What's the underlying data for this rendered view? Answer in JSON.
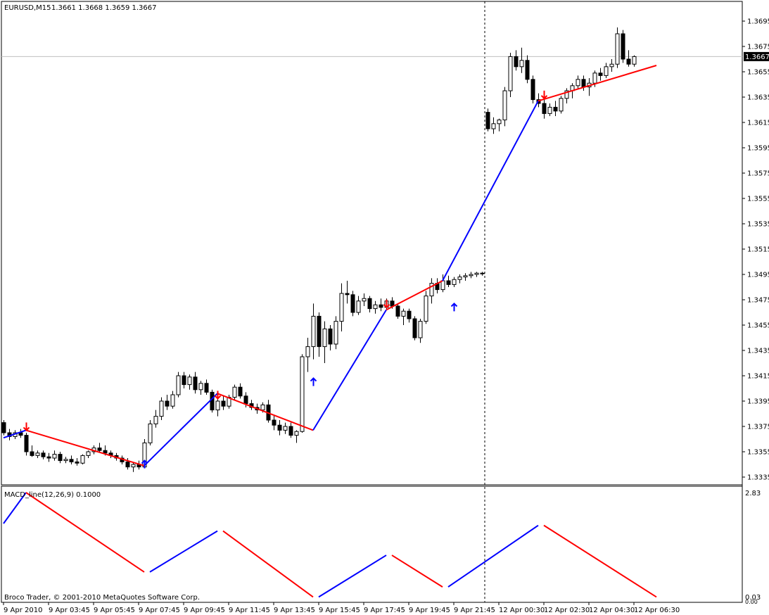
{
  "header": {
    "symbol": "EURUSD,M15",
    "ohlc": "1.3661 1.3668 1.3659 1.3667"
  },
  "indicator": {
    "title": "MACD_line(12,26,9) 0.1000",
    "max_label": "2.83",
    "min_label": "0.03",
    "zero_label": "0.00"
  },
  "copyright": "Broco Trader, © 2001-2010 MetaQuotes Software Corp.",
  "current_price_label": "1.3667",
  "chart_data": {
    "type": "candlestick",
    "price_axis": {
      "min": 1.3325,
      "max": 1.3705,
      "ticks": [
        "1.3695",
        "1.3675",
        "1.3655",
        "1.3635",
        "1.3615",
        "1.3595",
        "1.3575",
        "1.3555",
        "1.3535",
        "1.3515",
        "1.3495",
        "1.3475",
        "1.3455",
        "1.3435",
        "1.3415",
        "1.3395",
        "1.3375",
        "1.3355",
        "1.3335"
      ]
    },
    "time_axis": {
      "labels": [
        "9 Apr 2010",
        "9 Apr 03:45",
        "9 Apr 05:45",
        "9 Apr 07:45",
        "9 Apr 09:45",
        "9 Apr 11:45",
        "9 Apr 13:45",
        "9 Apr 15:45",
        "9 Apr 17:45",
        "9 Apr 19:45",
        "9 Apr 21:45",
        "12 Apr 00:30",
        "12 Apr 02:30",
        "12 Apr 04:30",
        "12 Apr 06:30"
      ],
      "label_index": [
        0,
        8,
        16,
        24,
        32,
        40,
        48,
        56,
        64,
        72,
        80,
        88,
        96,
        104,
        112
      ],
      "period_separator_index": 86
    },
    "current_price": 1.3667,
    "candles": [
      [
        1.3378,
        1.338,
        1.3368,
        1.337
      ],
      [
        1.337,
        1.3373,
        1.3364,
        1.3367
      ],
      [
        1.3367,
        1.3372,
        1.3365,
        1.337
      ],
      [
        1.337,
        1.3373,
        1.3366,
        1.3368
      ],
      [
        1.3368,
        1.337,
        1.3352,
        1.3355
      ],
      [
        1.3355,
        1.336,
        1.3351,
        1.3352
      ],
      [
        1.3352,
        1.3356,
        1.335,
        1.3354
      ],
      [
        1.3354,
        1.3356,
        1.3349,
        1.3351
      ],
      [
        1.3351,
        1.3354,
        1.3347,
        1.335
      ],
      [
        1.335,
        1.3356,
        1.3348,
        1.3353
      ],
      [
        1.3353,
        1.3355,
        1.3346,
        1.3348
      ],
      [
        1.3348,
        1.3351,
        1.3346,
        1.3349
      ],
      [
        1.3349,
        1.3352,
        1.3345,
        1.3347
      ],
      [
        1.3347,
        1.335,
        1.3344,
        1.3346
      ],
      [
        1.3346,
        1.3353,
        1.3345,
        1.3352
      ],
      [
        1.3352,
        1.3356,
        1.335,
        1.3355
      ],
      [
        1.3355,
        1.336,
        1.3353,
        1.3358
      ],
      [
        1.3358,
        1.3362,
        1.3355,
        1.3356
      ],
      [
        1.3356,
        1.336,
        1.3352,
        1.3354
      ],
      [
        1.3354,
        1.3356,
        1.335,
        1.3352
      ],
      [
        1.3352,
        1.3354,
        1.3348,
        1.335
      ],
      [
        1.335,
        1.3352,
        1.3345,
        1.3347
      ],
      [
        1.3347,
        1.335,
        1.3341,
        1.3343
      ],
      [
        1.3343,
        1.3347,
        1.3339,
        1.3345
      ],
      [
        1.3345,
        1.3348,
        1.3341,
        1.3343
      ],
      [
        1.3343,
        1.3365,
        1.3342,
        1.3362
      ],
      [
        1.3362,
        1.338,
        1.336,
        1.3377
      ],
      [
        1.3377,
        1.3388,
        1.3374,
        1.3383
      ],
      [
        1.3383,
        1.3398,
        1.338,
        1.3395
      ],
      [
        1.3395,
        1.34,
        1.3388,
        1.3391
      ],
      [
        1.3391,
        1.3403,
        1.3389,
        1.34
      ],
      [
        1.34,
        1.3418,
        1.3398,
        1.3415
      ],
      [
        1.3415,
        1.3418,
        1.3405,
        1.3408
      ],
      [
        1.3408,
        1.3416,
        1.3404,
        1.3414
      ],
      [
        1.3414,
        1.3418,
        1.3401,
        1.3404
      ],
      [
        1.3404,
        1.3411,
        1.34,
        1.3409
      ],
      [
        1.3409,
        1.3412,
        1.34,
        1.3402
      ],
      [
        1.3402,
        1.3404,
        1.3386,
        1.3388
      ],
      [
        1.3388,
        1.3398,
        1.3383,
        1.3395
      ],
      [
        1.3395,
        1.3399,
        1.3388,
        1.3391
      ],
      [
        1.3391,
        1.34,
        1.3389,
        1.3398
      ],
      [
        1.3398,
        1.3408,
        1.3396,
        1.3406
      ],
      [
        1.3406,
        1.3409,
        1.3397,
        1.3399
      ],
      [
        1.3399,
        1.3402,
        1.339,
        1.3393
      ],
      [
        1.3393,
        1.3396,
        1.3388,
        1.339
      ],
      [
        1.339,
        1.3393,
        1.3385,
        1.3388
      ],
      [
        1.3388,
        1.3394,
        1.3386,
        1.3392
      ],
      [
        1.3392,
        1.3396,
        1.3378,
        1.338
      ],
      [
        1.338,
        1.3384,
        1.3372,
        1.3376
      ],
      [
        1.3376,
        1.338,
        1.3368,
        1.3372
      ],
      [
        1.3372,
        1.3378,
        1.3369,
        1.3375
      ],
      [
        1.3375,
        1.3378,
        1.3366,
        1.3368
      ],
      [
        1.3368,
        1.3372,
        1.3362,
        1.3371
      ],
      [
        1.3371,
        1.3432,
        1.337,
        1.343
      ],
      [
        1.343,
        1.3445,
        1.3418,
        1.3438
      ],
      [
        1.3438,
        1.3472,
        1.3428,
        1.3462
      ],
      [
        1.3462,
        1.3465,
        1.343,
        1.3438
      ],
      [
        1.3438,
        1.3458,
        1.3425,
        1.3452
      ],
      [
        1.3452,
        1.3455,
        1.3435,
        1.344
      ],
      [
        1.344,
        1.3462,
        1.3436,
        1.3458
      ],
      [
        1.3458,
        1.3488,
        1.345,
        1.348
      ],
      [
        1.348,
        1.349,
        1.3472,
        1.3479
      ],
      [
        1.3479,
        1.3482,
        1.3462,
        1.3465
      ],
      [
        1.3465,
        1.3478,
        1.3463,
        1.3474
      ],
      [
        1.3474,
        1.348,
        1.347,
        1.3476
      ],
      [
        1.3476,
        1.3478,
        1.3465,
        1.3468
      ],
      [
        1.3468,
        1.3474,
        1.3464,
        1.3471
      ],
      [
        1.3471,
        1.3476,
        1.3466,
        1.3469
      ],
      [
        1.3469,
        1.3476,
        1.3467,
        1.3474
      ],
      [
        1.3474,
        1.3477,
        1.3468,
        1.347
      ],
      [
        1.347,
        1.3472,
        1.346,
        1.3462
      ],
      [
        1.3462,
        1.3468,
        1.3455,
        1.3466
      ],
      [
        1.3466,
        1.3468,
        1.3457,
        1.346
      ],
      [
        1.346,
        1.3462,
        1.3443,
        1.3445
      ],
      [
        1.3445,
        1.346,
        1.3441,
        1.3458
      ],
      [
        1.3458,
        1.3482,
        1.3456,
        1.3478
      ],
      [
        1.3478,
        1.3492,
        1.3472,
        1.3488
      ],
      [
        1.3488,
        1.3492,
        1.348,
        1.3483
      ],
      [
        1.3483,
        1.3495,
        1.3481,
        1.349
      ],
      [
        1.349,
        1.3494,
        1.3485,
        1.3487
      ],
      [
        1.3487,
        1.3493,
        1.3485,
        1.3491
      ],
      [
        1.3491,
        1.3495,
        1.3488,
        1.3493
      ],
      [
        1.3493,
        1.3496,
        1.349,
        1.3494
      ],
      [
        1.3494,
        1.3497,
        1.3492,
        1.3495
      ],
      [
        1.3495,
        1.3497,
        1.3493,
        1.3496
      ],
      [
        1.3496,
        1.3497,
        1.3494,
        1.3496
      ],
      [
        1.3623,
        1.3626,
        1.3608,
        1.361
      ],
      [
        1.361,
        1.3619,
        1.3606,
        1.3614
      ],
      [
        1.3614,
        1.3618,
        1.3608,
        1.3617
      ],
      [
        1.3617,
        1.3643,
        1.3612,
        1.364
      ],
      [
        1.364,
        1.367,
        1.3635,
        1.3667
      ],
      [
        1.3667,
        1.3672,
        1.3656,
        1.3659
      ],
      [
        1.3659,
        1.3674,
        1.3654,
        1.3664
      ],
      [
        1.3664,
        1.3668,
        1.3646,
        1.3649
      ],
      [
        1.3649,
        1.3652,
        1.363,
        1.3633
      ],
      [
        1.3633,
        1.3638,
        1.3627,
        1.363
      ],
      [
        1.363,
        1.3635,
        1.3618,
        1.3622
      ],
      [
        1.3622,
        1.363,
        1.362,
        1.3627
      ],
      [
        1.3627,
        1.3632,
        1.362,
        1.3624
      ],
      [
        1.3624,
        1.3636,
        1.3622,
        1.3634
      ],
      [
        1.3634,
        1.3642,
        1.363,
        1.364
      ],
      [
        1.364,
        1.3646,
        1.3634,
        1.3644
      ],
      [
        1.3644,
        1.3652,
        1.3641,
        1.3649
      ],
      [
        1.3649,
        1.3652,
        1.364,
        1.3643
      ],
      [
        1.3643,
        1.365,
        1.3636,
        1.3646
      ],
      [
        1.3646,
        1.3656,
        1.3643,
        1.3654
      ],
      [
        1.3654,
        1.3658,
        1.3648,
        1.3652
      ],
      [
        1.3652,
        1.3662,
        1.365,
        1.3659
      ],
      [
        1.3659,
        1.3665,
        1.3655,
        1.3661
      ],
      [
        1.3661,
        1.369,
        1.3658,
        1.3685
      ],
      [
        1.3685,
        1.3688,
        1.3662,
        1.3665
      ],
      [
        1.3665,
        1.3672,
        1.3659,
        1.3661
      ],
      [
        1.3661,
        1.3668,
        1.3659,
        1.3667
      ]
    ],
    "zigzag": [
      {
        "i": 0,
        "price": 1.3366,
        "color": "#0000ff"
      },
      {
        "i": 4,
        "price": 1.3372,
        "color": "#ff0000"
      },
      {
        "i": 25,
        "price": 1.3344,
        "color": "#0000ff"
      },
      {
        "i": 38,
        "price": 1.3401,
        "color": "#ff0000"
      },
      {
        "i": 55,
        "price": 1.3372,
        "color": "#0000ff"
      },
      {
        "i": 68,
        "price": 1.3467,
        "color": "#ff0000"
      },
      {
        "i": 78,
        "price": 1.349,
        "color": "#0000ff"
      },
      {
        "i": 95,
        "price": 1.3632,
        "color": "#ff0000"
      },
      {
        "i": 116,
        "price": 1.366,
        "color": "#ff0000"
      }
    ],
    "arrows": [
      {
        "i": 4,
        "price": 1.3372,
        "dir": "down",
        "color": "#ff0000"
      },
      {
        "i": 25,
        "price": 1.3348,
        "dir": "up",
        "color": "#0000ff"
      },
      {
        "i": 38,
        "price": 1.3397,
        "dir": "down",
        "color": "#ff0000"
      },
      {
        "i": 55,
        "price": 1.3413,
        "dir": "up",
        "color": "#0000ff"
      },
      {
        "i": 68,
        "price": 1.3469,
        "dir": "down",
        "color": "#ff0000"
      },
      {
        "i": 80,
        "price": 1.3472,
        "dir": "up",
        "color": "#0000ff"
      },
      {
        "i": 96,
        "price": 1.3634,
        "dir": "down",
        "color": "#ff0000"
      }
    ],
    "indicator_segments": [
      {
        "from": [
          0,
          2.0
        ],
        "to": [
          4,
          2.83
        ],
        "color": "#0000ff"
      },
      {
        "from": [
          4,
          2.83
        ],
        "to": [
          25,
          0.7
        ],
        "color": "#ff0000"
      },
      {
        "from": [
          26,
          0.7
        ],
        "to": [
          38,
          1.8
        ],
        "color": "#0000ff"
      },
      {
        "from": [
          39,
          1.8
        ],
        "to": [
          55,
          0.03
        ],
        "color": "#ff0000"
      },
      {
        "from": [
          56,
          0.03
        ],
        "to": [
          68,
          1.15
        ],
        "color": "#0000ff"
      },
      {
        "from": [
          69,
          1.15
        ],
        "to": [
          78,
          0.3
        ],
        "color": "#ff0000"
      },
      {
        "from": [
          79,
          0.3
        ],
        "to": [
          95,
          1.95
        ],
        "color": "#0000ff"
      },
      {
        "from": [
          96,
          1.95
        ],
        "to": [
          116,
          0.03
        ],
        "color": "#ff0000"
      }
    ],
    "indicator_axis": {
      "min": 0.0,
      "max": 2.83
    }
  }
}
